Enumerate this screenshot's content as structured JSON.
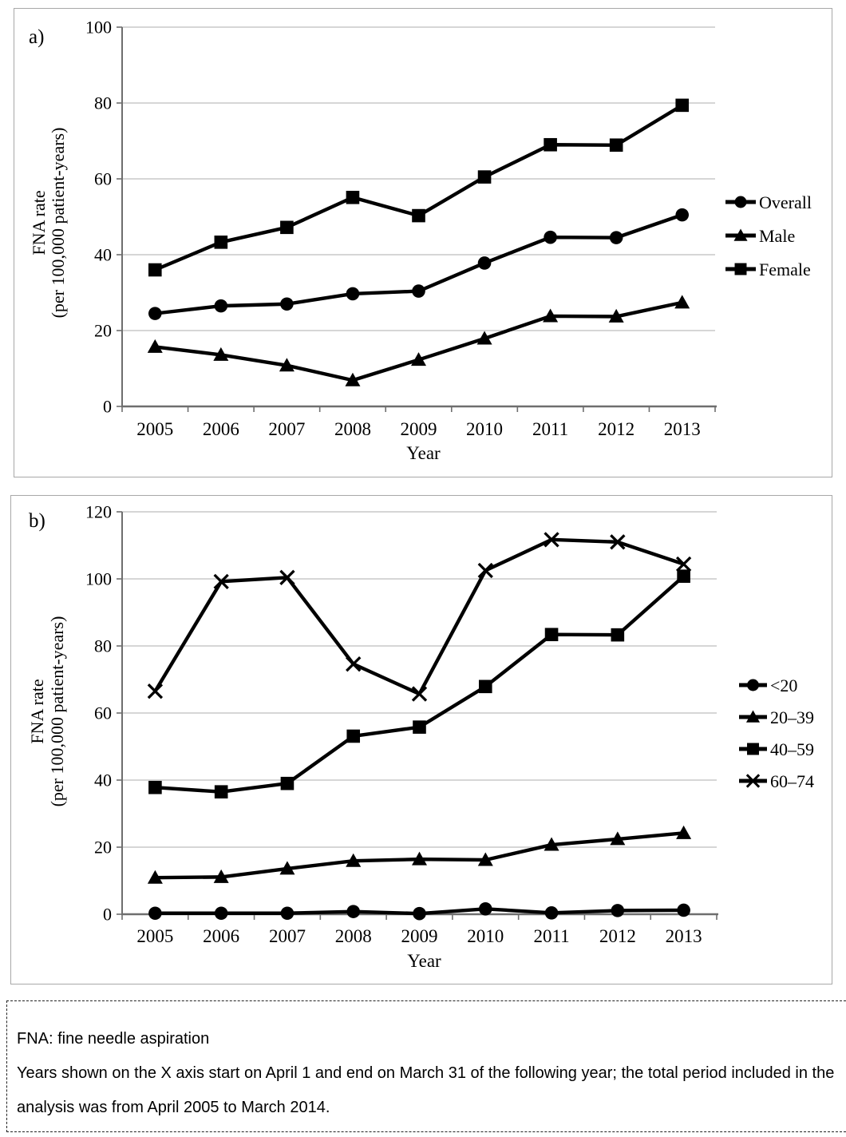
{
  "figure": {
    "footnote": {
      "abbreviation": "FNA: fine needle aspiration",
      "period_note": "Years shown on the X axis start on April 1 and end on March 31 of the following year; the total period included in the analysis was from April 2005 to March 2014."
    }
  },
  "chart_data": [
    {
      "type": "line",
      "panel_label": "a)",
      "title": "",
      "categories": [
        "2005",
        "2006",
        "2007",
        "2008",
        "2009",
        "2010",
        "2011",
        "2012",
        "2013"
      ],
      "xlabel": "Year",
      "ylabel_lines": [
        "FNA rate",
        "(per 100,000 patient-years)"
      ],
      "ylim": [
        0,
        100
      ],
      "ytick_step": 20,
      "grid": true,
      "legend_position": "right",
      "series": [
        {
          "name": "Overall",
          "marker": "circle",
          "values": [
            24.5,
            26.5,
            27.0,
            29.7,
            30.4,
            37.8,
            44.6,
            44.5,
            50.5
          ]
        },
        {
          "name": "Male",
          "marker": "triangle",
          "values": [
            15.7,
            13.6,
            10.8,
            6.9,
            12.3,
            17.9,
            23.8,
            23.7,
            27.4
          ]
        },
        {
          "name": "Female",
          "marker": "square",
          "values": [
            36.0,
            43.3,
            47.2,
            55.1,
            50.3,
            60.5,
            69.0,
            68.9,
            79.4
          ]
        }
      ]
    },
    {
      "type": "line",
      "panel_label": "b)",
      "title": "",
      "categories": [
        "2005",
        "2006",
        "2007",
        "2008",
        "2009",
        "2010",
        "2011",
        "2012",
        "2013"
      ],
      "xlabel": "Year",
      "ylabel_lines": [
        "FNA rate",
        "(per 100,000 patient-years)"
      ],
      "ylim": [
        0,
        120
      ],
      "ytick_step": 20,
      "grid": true,
      "legend_position": "right",
      "series": [
        {
          "name": "<20",
          "marker": "circle",
          "values": [
            0.3,
            0.3,
            0.3,
            0.8,
            0.2,
            1.6,
            0.4,
            1.1,
            1.2
          ]
        },
        {
          "name": "20–39",
          "marker": "triangle",
          "values": [
            10.9,
            11.1,
            13.6,
            15.9,
            16.4,
            16.2,
            20.7,
            22.4,
            24.2
          ]
        },
        {
          "name": "40–59",
          "marker": "square",
          "values": [
            37.8,
            36.5,
            39.0,
            53.1,
            55.8,
            67.9,
            83.4,
            83.3,
            100.8
          ]
        },
        {
          "name": "60–74",
          "marker": "x",
          "values": [
            66.5,
            99.2,
            100.4,
            74.6,
            65.7,
            102.5,
            111.7,
            111.0,
            104.4
          ]
        }
      ]
    }
  ],
  "colors": {
    "series": "#000000",
    "gridline": "#c9c9c9",
    "axis": "#6e6e6e",
    "panel_border": "#a8a8a8",
    "text": "#000000"
  }
}
